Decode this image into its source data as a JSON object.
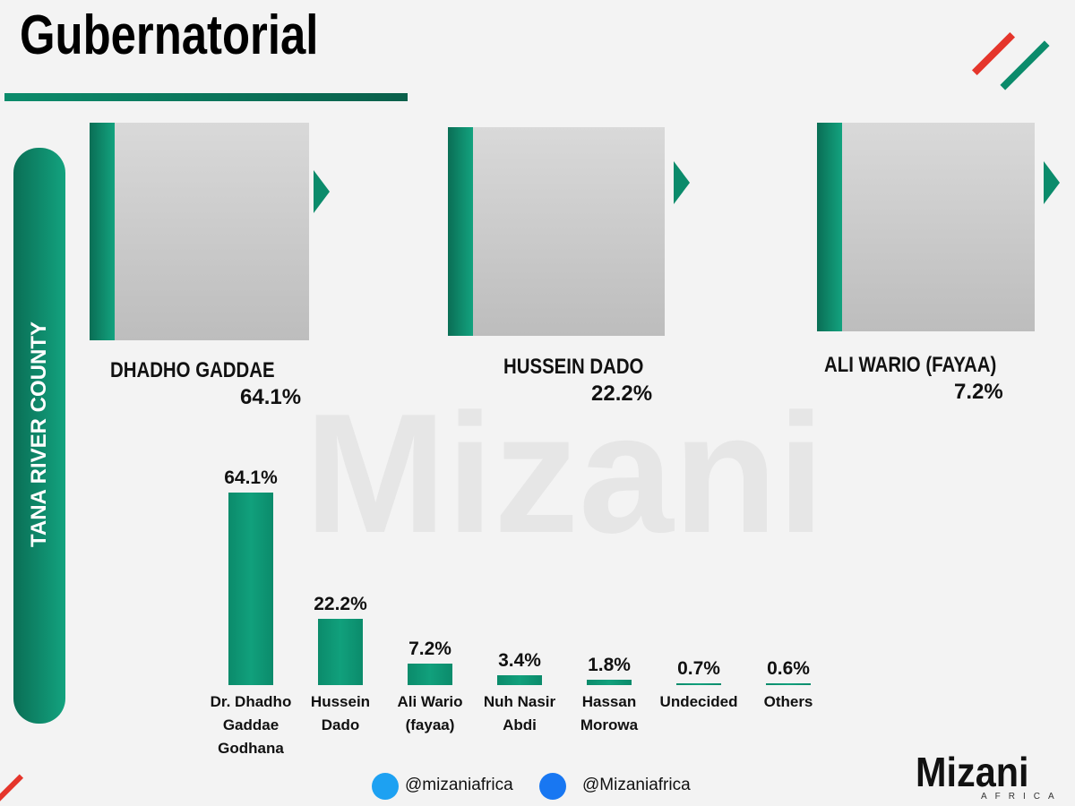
{
  "header": {
    "title": "Gubernatorial",
    "county": "TANA RIVER COUNTY",
    "watermark": "Mizani"
  },
  "candidates": [
    {
      "name": "DHADHO GADDAE",
      "share": "64.1%"
    },
    {
      "name": "HUSSEIN DADO",
      "share": "22.2%"
    },
    {
      "name": "ALI WARIO (FAYAA)",
      "share": "7.2%"
    }
  ],
  "chart_data": {
    "type": "bar",
    "categories": [
      "Dr. Dhadho Gaddae Godhana",
      "Hussein Dado",
      "Ali Wario (fayaa)",
      "Nuh Nasir Abdi",
      "Hassan Morowa",
      "Undecided",
      "Others"
    ],
    "values": [
      64.1,
      22.2,
      7.2,
      3.4,
      1.8,
      0.7,
      0.6
    ],
    "value_labels": [
      "64.1%",
      "22.2%",
      "7.2%",
      "3.4%",
      "1.8%",
      "0.7%",
      "0.6%"
    ],
    "color": "#0b8b6b"
  },
  "footer": {
    "twitter": "@mizaniafrica",
    "facebook": "@Mizaniafrica",
    "logo": "Mizani",
    "logo_sub": "AFRICA"
  }
}
